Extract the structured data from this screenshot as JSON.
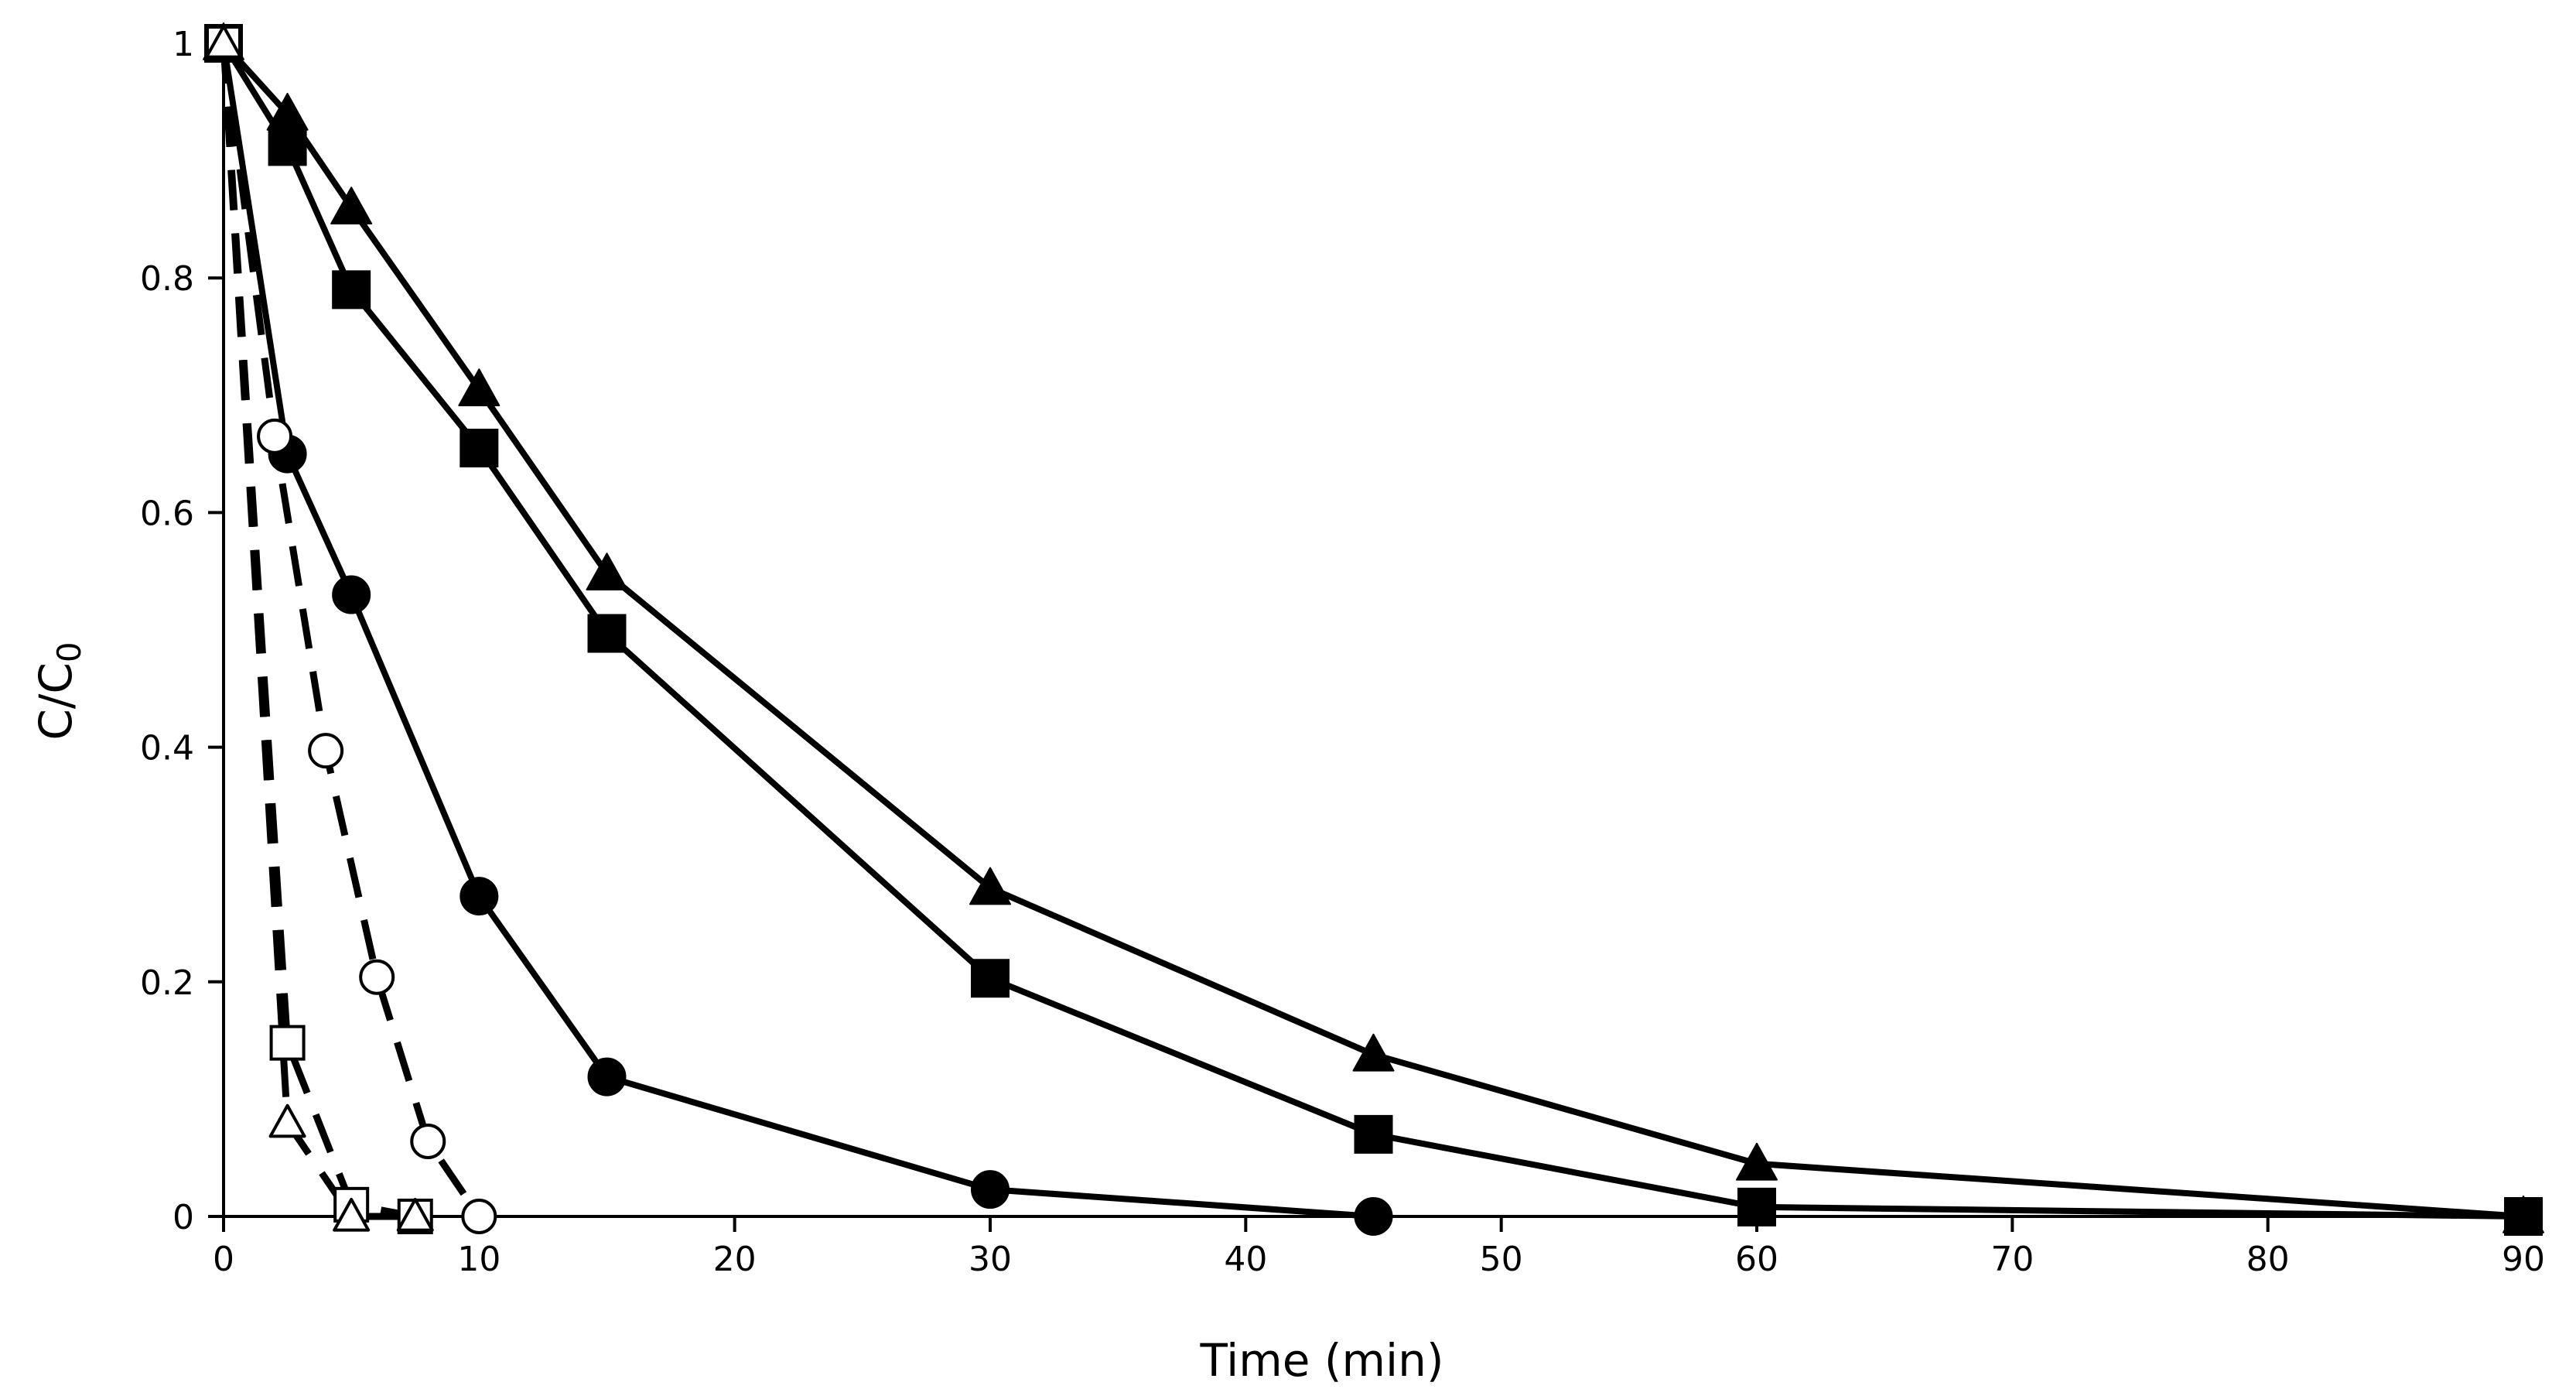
{
  "chart_data": {
    "type": "line",
    "title": "",
    "xlabel": "Time (min)",
    "ylabel": {
      "main": "C/C",
      "subscript": "0"
    },
    "xlim": [
      0,
      90
    ],
    "ylim": [
      0,
      1
    ],
    "xticks": [
      "0",
      "10",
      "20",
      "30",
      "40",
      "50",
      "60",
      "70",
      "80",
      "90"
    ],
    "yticks": [
      "0",
      "0.2",
      "0.4",
      "0.6",
      "0.8",
      "1"
    ],
    "grid": false,
    "legend": "none",
    "series": [
      {
        "name": "filled-triangle",
        "style": "solid",
        "marker": "triangle",
        "filled": true,
        "x": [
          0,
          2.5,
          5,
          10,
          15,
          30,
          45,
          60,
          90
        ],
        "y": [
          1,
          0.94,
          0.86,
          0.705,
          0.548,
          0.28,
          0.138,
          0.045,
          0.0
        ]
      },
      {
        "name": "filled-square",
        "style": "solid",
        "marker": "square",
        "filled": true,
        "x": [
          0,
          2.5,
          5,
          10,
          15,
          30,
          45,
          60,
          90
        ],
        "y": [
          1,
          0.912,
          0.79,
          0.655,
          0.497,
          0.203,
          0.07,
          0.008,
          0.0
        ]
      },
      {
        "name": "filled-circle",
        "style": "solid",
        "marker": "circle",
        "filled": true,
        "x": [
          0,
          2.5,
          5,
          10,
          15,
          30,
          45
        ],
        "y": [
          1,
          0.65,
          0.53,
          0.273,
          0.119,
          0.023,
          0.0
        ]
      },
      {
        "name": "open-circle",
        "style": "dashed",
        "marker": "circle",
        "filled": false,
        "x": [
          0,
          2,
          4,
          6,
          8,
          10
        ],
        "y": [
          1,
          0.665,
          0.397,
          0.204,
          0.064,
          0.0
        ]
      },
      {
        "name": "open-square",
        "style": "dashed",
        "marker": "square",
        "filled": false,
        "x": [
          0,
          2.5,
          5,
          7.5
        ],
        "y": [
          1,
          0.148,
          0.01,
          0.0
        ]
      },
      {
        "name": "open-triangle",
        "style": "dashed",
        "marker": "triangle",
        "filled": false,
        "x": [
          0,
          2.5,
          5,
          7.5
        ],
        "y": [
          1,
          0.08,
          0.0,
          0.0
        ]
      }
    ]
  }
}
